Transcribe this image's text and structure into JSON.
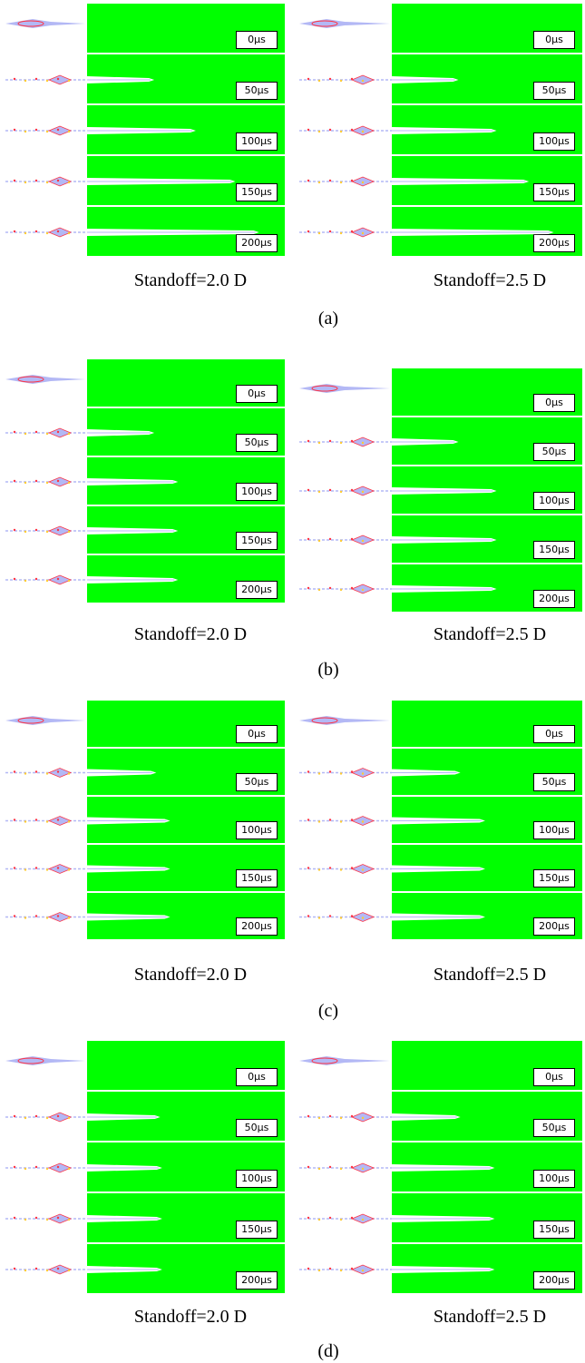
{
  "colors": {
    "target": "#00ff00",
    "jet": "#b3b8f5",
    "hot": "#ff3344",
    "warm": "#ffcc33",
    "edge": "#ffffff"
  },
  "groups": [
    {
      "label": "(a)",
      "panels": [
        {
          "caption": "Standoff=2.0 D",
          "frames": [
            "0μs",
            "50μs",
            "100μs",
            "150μs",
            "200μs"
          ],
          "penetration": [
            0,
            0.34,
            0.55,
            0.75,
            0.87
          ]
        },
        {
          "caption": "Standoff=2.5 D",
          "frames": [
            "0μs",
            "50μs",
            "100μs",
            "150μs",
            "200μs"
          ],
          "penetration": [
            0,
            0.35,
            0.55,
            0.72,
            0.85
          ]
        }
      ]
    },
    {
      "label": "(b)",
      "panels": [
        {
          "caption": "Standoff=2.0 D",
          "frames": [
            "0μs",
            "50μs",
            "100μs",
            "150μs",
            "200μs"
          ],
          "penetration": [
            0,
            0.34,
            0.46,
            0.46,
            0.46
          ]
        },
        {
          "caption": "Standoff=2.5 D",
          "frames": [
            "0μs",
            "50μs",
            "100μs",
            "150μs",
            "200μs"
          ],
          "penetration": [
            0,
            0.35,
            0.55,
            0.55,
            0.55
          ]
        }
      ]
    },
    {
      "label": "(c)",
      "panels": [
        {
          "caption": "Standoff=2.0 D",
          "frames": [
            "0μs",
            "50μs",
            "100μs",
            "150μs",
            "200μs"
          ],
          "penetration": [
            0,
            0.35,
            0.42,
            0.42,
            0.42
          ]
        },
        {
          "caption": "Standoff=2.5 D",
          "frames": [
            "0μs",
            "50μs",
            "100μs",
            "150μs",
            "200μs"
          ],
          "penetration": [
            0,
            0.36,
            0.49,
            0.49,
            0.49
          ]
        }
      ]
    },
    {
      "label": "(d)",
      "panels": [
        {
          "caption": "Standoff=2.0 D",
          "frames": [
            "0μs",
            "50μs",
            "100μs",
            "150μs",
            "200μs"
          ],
          "penetration": [
            0,
            0.37,
            0.38,
            0.38,
            0.38
          ]
        },
        {
          "caption": "Standoff=2.5 D",
          "frames": [
            "0μs",
            "50μs",
            "100μs",
            "150μs",
            "200μs"
          ],
          "penetration": [
            0,
            0.36,
            0.54,
            0.54,
            0.54
          ]
        }
      ]
    }
  ]
}
